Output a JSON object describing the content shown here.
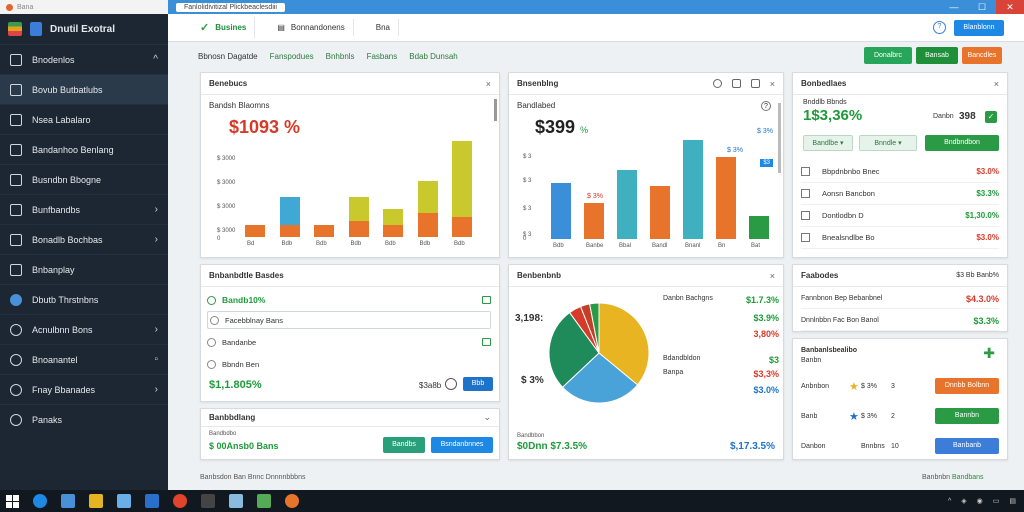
{
  "window": {
    "sys_title": "Bana",
    "title": "Fanlolidivitizal Plickbeaclesdiii",
    "min": "—",
    "max": "☐",
    "close": "✕"
  },
  "brand": {
    "name": "Dnutil Exotral"
  },
  "sidebar": {
    "items": [
      {
        "label": "Bnodenlos",
        "chev": "^"
      },
      {
        "label": "Bovub Butbatlubs",
        "chev": ""
      },
      {
        "label": "Nsea Labalaro",
        "chev": ""
      },
      {
        "label": "Bandanhoo Benlang",
        "chev": ""
      },
      {
        "label": "Busndbn Bbogne",
        "chev": ""
      },
      {
        "label": "Bunfbandbs",
        "chev": "›"
      },
      {
        "label": "Bonadlb Bochbas",
        "chev": "›"
      },
      {
        "label": "Bnbanplay",
        "chev": ""
      },
      {
        "label": "Dbutb Thrstnbns",
        "chev": ""
      },
      {
        "label": "Acnulbnn Bons",
        "chev": "›"
      },
      {
        "label": "Bnoanantel",
        "chev": "▫"
      },
      {
        "label": "Fnay Bbanades",
        "chev": "›"
      },
      {
        "label": "Panaks",
        "chev": ""
      }
    ]
  },
  "tabs": [
    {
      "label": "Busines",
      "active": true
    },
    {
      "label": "Bonnandonens"
    },
    {
      "label": "Bna"
    }
  ],
  "top_button": "Blanblonn",
  "subnav": [
    "Bbnosn Dagatde",
    "Fanspodues",
    "Bnhbnls",
    "Fasbans",
    "Bdab Dunsah"
  ],
  "actions": [
    {
      "label": "Donalbrc",
      "color": "#27a65b"
    },
    {
      "label": "Bansab",
      "color": "#1f8f3a"
    },
    {
      "label": "Bancdles",
      "color": "#e8732a"
    }
  ],
  "colors": {
    "green": "#1f9a3a",
    "red": "#d63b2a",
    "blue": "#1e73c8",
    "orange": "#e8732a",
    "yellow": "#c9c82c",
    "teal": "#3fb0c0"
  },
  "panel1": {
    "title": "Benebucs",
    "sub": "Bandsh Blaomns",
    "value": "$1093 %",
    "yticks": [
      "$ 3000",
      "$ 3000",
      "$ 3000",
      "$ 3000",
      "0"
    ],
    "xticks": [
      "Bd",
      "Bdb",
      "Bdb",
      "Bdb",
      "Bdb",
      "Bdb",
      "Bdb"
    ]
  },
  "panel2": {
    "title": "Bnsenblng",
    "sub": "Bandlabed",
    "value": "$399",
    "value_pct": "%",
    "pct_right_1": "$ 3%",
    "pct_right_2": "$ 3%",
    "badge": "$3",
    "bar_label": "$ 3%",
    "yticks": [
      "$ 3",
      "$ 3",
      "$ 3",
      "$ 3",
      "0"
    ],
    "xticks": [
      "Bdb",
      "Banbe",
      "Bbal",
      "Bandl",
      "Bnanl",
      "Bn",
      "Bat"
    ]
  },
  "panel3": {
    "title": "Bonbedlaes",
    "sub": "Bnddlb Bbnds",
    "value": "1$3,36%",
    "amount_label": "Danbn",
    "amount": "398",
    "btn1": "Bandlbe",
    "btn2": "Bnndle",
    "btn3": "Bndbndbon",
    "rows": [
      {
        "label": "Bbpdnbnbo Bnec",
        "value": "$3.0%",
        "color": "red"
      },
      {
        "label": "Aonsn Bancbon",
        "value": "$3.3%",
        "color": "green"
      },
      {
        "label": "Dontlodbn D",
        "value": "$1,30.0%",
        "color": "green"
      },
      {
        "label": "Bnealsndlbe Bo",
        "value": "$3.0%",
        "color": "red"
      }
    ]
  },
  "panel4": {
    "title": "Bnbanbdtle Basdes",
    "items": [
      {
        "label": "Bandb10%",
        "color": "green"
      },
      {
        "label": "Facebblnay Bans",
        "color": ""
      },
      {
        "label": "Bandanbe",
        "color": ""
      },
      {
        "label": "Bbndn Ben",
        "color": ""
      }
    ],
    "value": "$1,1.805%",
    "mid": "$3a8b",
    "btn": "Bbb"
  },
  "panel5": {
    "title": "Benbenbnb",
    "left_pct": "3,198:",
    "left_pct2": "$ 3%",
    "legend": [
      {
        "label": "Danbn Bachgns",
        "value": "$1.7.3%",
        "color": "green"
      },
      {
        "label": "",
        "value": "$3.9%",
        "color": "green"
      },
      {
        "label": "",
        "value": "3,80%",
        "color": "red"
      },
      {
        "label": "Bdandbldon",
        "value": "$3",
        "color": "green"
      },
      {
        "label": "Banpa",
        "value": "$3,3%",
        "color": "red"
      },
      {
        "label": "",
        "value": "$3.0%",
        "color": "blue"
      }
    ],
    "foot_label": "Bandbbon",
    "foot_value": "$0Dnn $7.3.5%",
    "foot_right": "$,17.3.5%",
    "slices": [
      {
        "value": 36,
        "color": "#e8b422"
      },
      {
        "value": 27,
        "color": "#4aa3d8"
      },
      {
        "value": 27,
        "color": "#1f8a5a"
      },
      {
        "value": 4,
        "color": "#d63b2a"
      },
      {
        "value": 3,
        "color": "#c2402a"
      },
      {
        "value": 3,
        "color": "#2a9a44"
      }
    ]
  },
  "panel6": {
    "title": "Banbbdlang",
    "sub": "Bandbdbo",
    "value": "$ 00Ansb0 Bans",
    "btn1": "Bandbs",
    "btn2": "Bsndanbnnes"
  },
  "panel7": {
    "title": "Faabodes",
    "title_right": "$3 Bb Banb%",
    "rows": [
      {
        "label": "Fannbnon Bep Bebanbnel",
        "value": "$4.3.0%",
        "color": "red"
      },
      {
        "label": "Dnnlnbbn Fac Bon Banol",
        "value": "$3.3%",
        "color": "green"
      }
    ]
  },
  "panel8": {
    "title": "Banbanlsbealibo",
    "sub": "Banbn",
    "rows": [
      {
        "label": "Anbnbon",
        "pct": "$ 3%",
        "num": "3",
        "btn": "Dnnbb Bolbnn",
        "btncolor": "#e8732a"
      },
      {
        "label": "Banb",
        "pct": "$ 3%",
        "num": "2",
        "btn": "Bannbn",
        "btncolor": "#2a9a44"
      },
      {
        "label": "Danbon",
        "pct": "Bnnbns",
        "num": "10",
        "btn": "Banbanb",
        "btncolor": "#3b7dd8"
      }
    ]
  },
  "footer": {
    "left": "Banbsdon Ban Bnnc Dnnnnbbbns",
    "right1": "Banbnbn",
    "right2": "Bandbans"
  },
  "chart_data": [
    {
      "type": "bar",
      "title": "Benebucs",
      "categories": [
        "Bd",
        "Bdb",
        "Bdb",
        "Bdb",
        "Bdb",
        "Bdb",
        "Bdb"
      ],
      "series": [
        {
          "values": [
            3,
            3,
            3,
            4,
            3,
            6,
            5
          ]
        },
        {
          "values": [
            0,
            7,
            0,
            6,
            4,
            8,
            19
          ]
        }
      ]
    },
    {
      "type": "bar",
      "title": "Bnsenblng",
      "categories": [
        "Bdb",
        "Banbe",
        "Bbal",
        "Bandl",
        "Bnanl",
        "Bn",
        "Bat"
      ],
      "values": [
        17,
        11,
        21,
        16,
        30,
        25,
        7
      ]
    },
    {
      "type": "pie",
      "title": "Benbenbnb",
      "values": [
        36,
        27,
        27,
        4,
        3,
        3
      ]
    }
  ]
}
